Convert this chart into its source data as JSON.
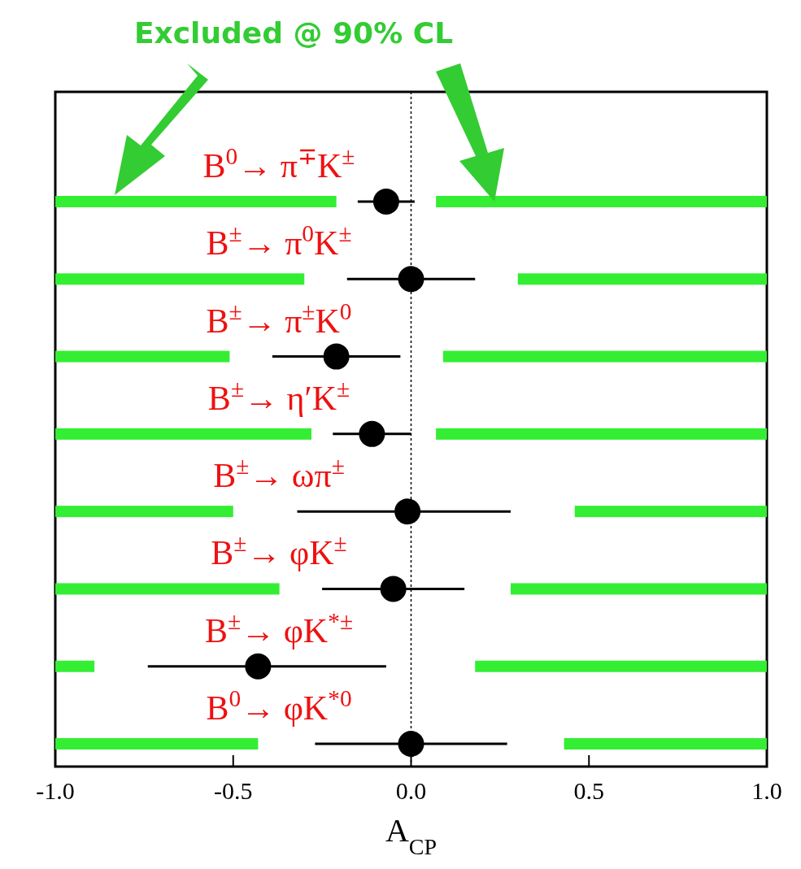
{
  "chart_data": {
    "type": "bar",
    "orientation": "horizontal",
    "xlabel": "A$_{CP}$",
    "annotations": [
      "Excluded @ 90% CL"
    ],
    "categories": [
      "B$^{0}$→ π$^{∓}$K$^{±}$",
      "B$^{±}$→ π$^{0}$K$^{±}$",
      "B$^{±}$→ π$^{±}$K$^{0}$",
      "B$^{±}$→ η′K$^{±}$",
      "B$^{±}$→ ωπ$^{±}$",
      "B$^{±}$→ φK$^{±}$",
      "B$^{±}$→ φK$^{*±}$",
      "B$^{0}$→ φK$^{*0}$"
    ],
    "series": [
      {
        "color": "#33ee33",
        "base": [
          -1,
          -1,
          -1,
          -1,
          -1,
          -1,
          -1,
          -1
        ],
        "values": [
          0.79,
          0.7,
          0.49,
          0.72,
          0.5,
          0.63,
          0.11,
          0.57
        ]
      },
      {
        "color": "#33ee33",
        "base": [
          0.07,
          0.3,
          0.09,
          0.07,
          0.46,
          0.28,
          0.18,
          0.43
        ],
        "values": [
          0.93,
          0.7,
          0.91,
          0.93,
          0.54,
          0.72,
          0.82,
          0.57
        ]
      },
      {
        "type": "scatter",
        "color": "#000000",
        "values": [
          -0.07,
          0.0,
          -0.21,
          -0.11,
          -0.01,
          -0.05,
          -0.43,
          0.0
        ],
        "errors": [
          [
            -0.15,
            0.01
          ],
          [
            -0.18,
            0.18
          ],
          [
            -0.39,
            -0.03
          ],
          [
            -0.22,
            0.0
          ],
          [
            -0.32,
            0.28
          ],
          [
            -0.25,
            0.15
          ],
          [
            -0.74,
            -0.07
          ],
          [
            -0.27,
            0.27
          ]
        ]
      }
    ],
    "xlim": [
      -1,
      1
    ],
    "xticks": [
      {
        "value": -1,
        "label": "-1.0"
      },
      {
        "value": -0.5,
        "label": "-0.5"
      },
      {
        "value": 0,
        "label": "0.0"
      },
      {
        "value": 0.5,
        "label": "0.5"
      },
      {
        "value": 1,
        "label": "1.0"
      }
    ],
    "ref_lines": [
      {
        "axis": "x",
        "value": 0,
        "line_style": "dotted"
      }
    ],
    "marker": "circle",
    "grid": false
  }
}
